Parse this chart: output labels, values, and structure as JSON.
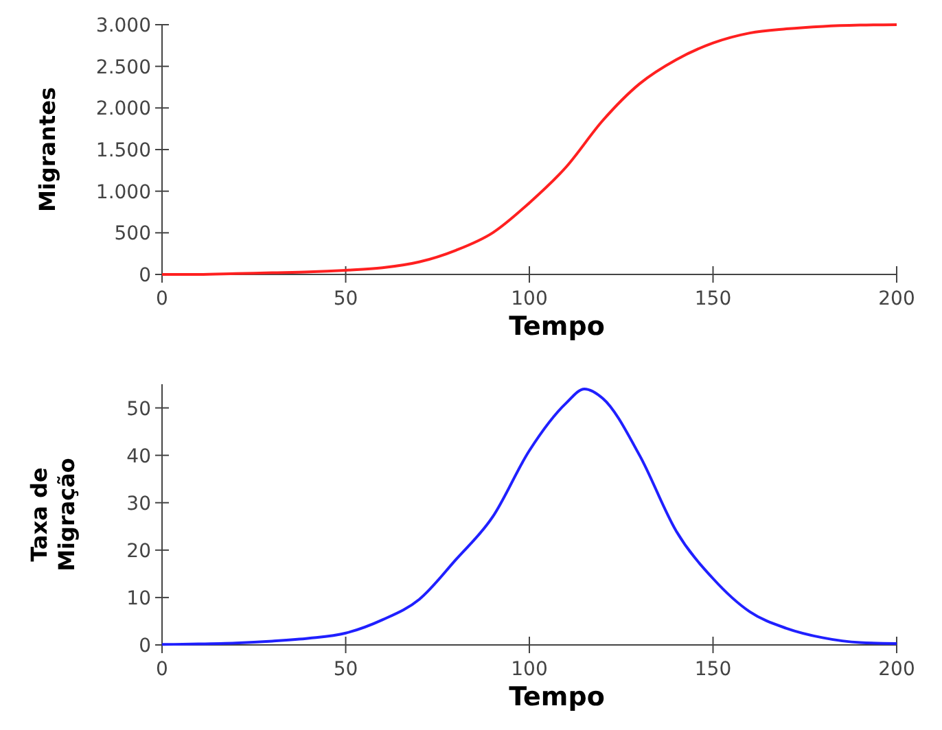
{
  "chart_data": [
    {
      "type": "line",
      "xlabel": "Tempo",
      "ylabel": "Migrantes",
      "x": [
        0,
        10,
        20,
        30,
        40,
        50,
        60,
        70,
        80,
        90,
        100,
        110,
        120,
        130,
        140,
        150,
        160,
        170,
        180,
        190,
        200
      ],
      "xlim": [
        0,
        200
      ],
      "xticks": [
        0,
        50,
        100,
        150,
        200
      ],
      "ylim": [
        0,
        3000
      ],
      "yticks": [
        0,
        500,
        {
          "value": 1000,
          "label": "1.000"
        },
        {
          "value": 1500,
          "label": "1.500"
        },
        {
          "value": 2000,
          "label": "2.000"
        },
        {
          "value": 2500,
          "label": "2.500"
        },
        {
          "value": 3000,
          "label": "3.000"
        }
      ],
      "grid": false,
      "marker": "none",
      "line_style": "solid",
      "series": [
        {
          "color": "#ff2020",
          "values": [
            0,
            0,
            10,
            20,
            30,
            50,
            80,
            150,
            290,
            500,
            860,
            1290,
            1850,
            2290,
            2580,
            2780,
            2900,
            2950,
            2980,
            2995,
            3000
          ]
        }
      ]
    },
    {
      "type": "line",
      "xlabel": "Tempo",
      "ylabel": "Taxa de Migração",
      "x": [
        0,
        10,
        20,
        30,
        40,
        50,
        60,
        70,
        80,
        90,
        100,
        110,
        115,
        120,
        130,
        140,
        150,
        160,
        170,
        180,
        190,
        200
      ],
      "xlim": [
        0,
        200
      ],
      "xticks": [
        0,
        50,
        100,
        150,
        200
      ],
      "ylim": [
        0,
        55
      ],
      "yticks": [
        0,
        10,
        20,
        30,
        40,
        50
      ],
      "grid": false,
      "marker": "none",
      "line_style": "solid",
      "series": [
        {
          "color": "#2020ff",
          "values": [
            0.1,
            0.2,
            0.4,
            0.8,
            1.4,
            2.5,
            5.3,
            9.6,
            18,
            27,
            41,
            51,
            54,
            52,
            40,
            24,
            14,
            7,
            3.5,
            1.5,
            0.5,
            0.3
          ]
        }
      ]
    }
  ]
}
